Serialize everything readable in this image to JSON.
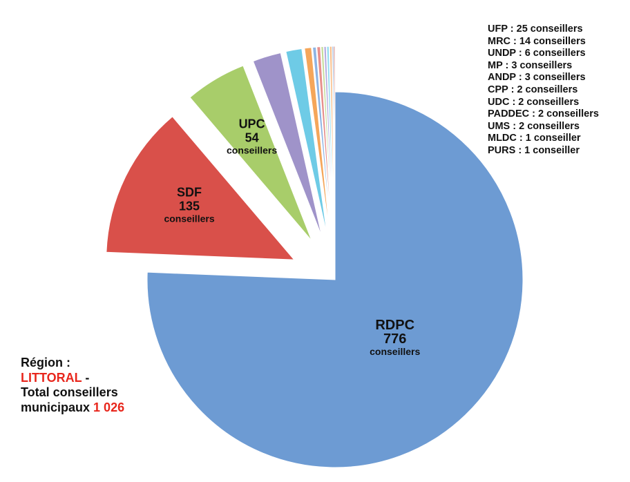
{
  "chart_data": {
    "type": "pie",
    "slices": [
      {
        "label": "RDPC",
        "value": 776,
        "unit": "conseillers",
        "color": "#6d9bd3",
        "exploded": false
      },
      {
        "label": "SDF",
        "value": 135,
        "unit": "conseillers",
        "color": "#d9504a",
        "exploded": true
      },
      {
        "label": "UPC",
        "value": 54,
        "unit": "conseillers",
        "color": "#a8cd6a",
        "exploded": true
      },
      {
        "label": "UFP",
        "value": 25,
        "unit": "conseillers",
        "color": "#9f93c9",
        "exploded": true
      },
      {
        "label": "MRC",
        "value": 14,
        "unit": "conseillers",
        "color": "#6ecbe6",
        "exploded": true
      },
      {
        "label": "UNDP",
        "value": 6,
        "unit": "conseillers",
        "color": "#f5a65a",
        "exploded": true
      },
      {
        "label": "MP",
        "value": 3,
        "unit": "conseillers",
        "color": "#8eb4e3",
        "exploded": true
      },
      {
        "label": "ANDP",
        "value": 3,
        "unit": "conseillers",
        "color": "#e7908d",
        "exploded": true
      },
      {
        "label": "CPP",
        "value": 2,
        "unit": "conseillers",
        "color": "#c4dc9a",
        "exploded": true
      },
      {
        "label": "UDC",
        "value": 2,
        "unit": "conseillers",
        "color": "#b6ace0",
        "exploded": true
      },
      {
        "label": "PADDEC",
        "value": 2,
        "unit": "conseillers",
        "color": "#92dcef",
        "exploded": true
      },
      {
        "label": "UMS",
        "value": 2,
        "unit": "conseillers",
        "color": "#f9c08c",
        "exploded": true
      },
      {
        "label": "MLDC",
        "value": 1,
        "unit": "conseillers",
        "color": "#4f81bd",
        "exploded": true
      },
      {
        "label": "PURS",
        "value": 1,
        "unit": "conseillers",
        "color": "#c0504d",
        "exploded": true
      }
    ],
    "legend_entries": [
      "UFP : 25 conseillers",
      "MRC : 14 conseillers",
      "UNDP : 6 conseillers",
      "MP : 3 conseillers",
      "ANDP : 3 conseillers",
      "CPP : 2 conseillers",
      "UDC : 2 conseillers",
      "PADDEC : 2 conseillers",
      "UMS : 2 conseillers",
      "MLDC : 1 conseiller",
      "PURS : 1 conseiller"
    ],
    "legend_placement": "top-right"
  },
  "annotation": {
    "line1": "Région :",
    "region": "LITTORAL",
    "sep": " -",
    "line3": "Total conseillers",
    "line4": "municipaux",
    "total": "1 026"
  }
}
